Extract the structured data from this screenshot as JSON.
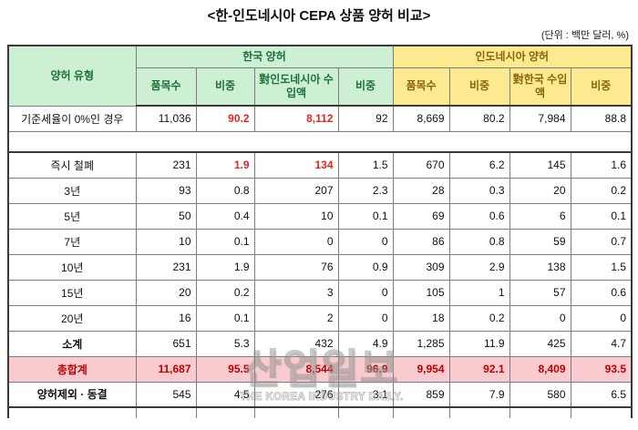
{
  "title": "<한-인도네시아 CEPA 상품 양허 비교>",
  "unit_note": "(단위 : 백만 달러, %)",
  "colors": {
    "korea_header_bg": "#cdf0d4",
    "korea_header_text": "#1c7038",
    "indonesia_header_bg": "#fdea90",
    "indonesia_header_text": "#8a6508",
    "grand_total_bg": "#f9cbce",
    "grand_total_text": "#c00000",
    "emphasis_red": "#e8241c",
    "grid_line": "#7d7d7d"
  },
  "chart_data": {
    "type": "table",
    "row_header": "양허 유형",
    "column_groups": [
      {
        "label": "한국 양허",
        "columns": [
          "품목수",
          "비중",
          "對인도네시아 수입액",
          "비중"
        ]
      },
      {
        "label": "인도네시아 양허",
        "columns": [
          "품목수",
          "비중",
          "對한국 수입액",
          "비중"
        ]
      }
    ],
    "rows": [
      {
        "label": "기준세율이 0%인 경우",
        "values": [
          "11,036",
          "90.2",
          "8,112",
          "92",
          "8,669",
          "80.2",
          "7,984",
          "88.8"
        ],
        "red": [
          1,
          2
        ],
        "style": "normal"
      },
      {
        "spacer": true
      },
      {
        "label": "즉시 철폐",
        "values": [
          "231",
          "1.9",
          "134",
          "1.5",
          "670",
          "6.2",
          "145",
          "1.6"
        ],
        "red": [
          1,
          2
        ],
        "style": "normal"
      },
      {
        "label": "3년",
        "values": [
          "93",
          "0.8",
          "207",
          "2.3",
          "28",
          "0.3",
          "20",
          "0.2"
        ],
        "red": [],
        "style": "normal"
      },
      {
        "label": "5년",
        "values": [
          "50",
          "0.4",
          "10",
          "0.1",
          "69",
          "0.6",
          "6",
          "0.1"
        ],
        "red": [],
        "style": "normal"
      },
      {
        "label": "7년",
        "values": [
          "10",
          "0.1",
          "0",
          "0",
          "86",
          "0.8",
          "59",
          "0.7"
        ],
        "red": [],
        "style": "normal"
      },
      {
        "label": "10년",
        "values": [
          "231",
          "1.9",
          "76",
          "0.9",
          "309",
          "2.9",
          "138",
          "1.5"
        ],
        "red": [],
        "style": "normal"
      },
      {
        "label": "15년",
        "values": [
          "20",
          "0.2",
          "3",
          "0",
          "105",
          "1",
          "57",
          "0.6"
        ],
        "red": [],
        "style": "normal"
      },
      {
        "label": "20년",
        "values": [
          "16",
          "0.1",
          "2",
          "0",
          "18",
          "0.2",
          "0",
          "0"
        ],
        "red": [],
        "style": "normal"
      },
      {
        "label": "소계",
        "values": [
          "651",
          "5.3",
          "432",
          "4.9",
          "1,285",
          "11.9",
          "425",
          "4.7"
        ],
        "red": [],
        "style": "subtotal"
      },
      {
        "label": "총합계",
        "values": [
          "11,687",
          "95.5",
          "8,544",
          "96.9",
          "9,954",
          "92.1",
          "8,409",
          "93.5"
        ],
        "red": [],
        "style": "grand_total"
      },
      {
        "label": "양허제외 · 동결",
        "values": [
          "545",
          "4.5",
          "276",
          "3.1",
          "859",
          "7.9",
          "580",
          "6.5"
        ],
        "red": [],
        "style": "subtotal"
      }
    ]
  },
  "watermark": {
    "line1": "산업일보",
    "line2": "THE KOREA INDUSTRY DAILY."
  }
}
